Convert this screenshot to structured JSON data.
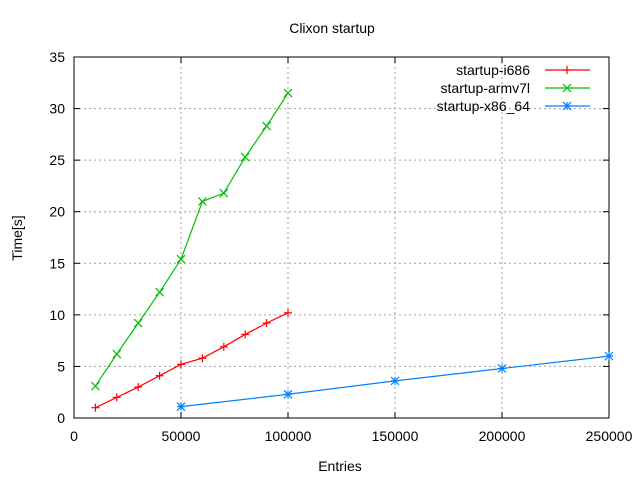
{
  "chart_data": {
    "type": "line",
    "title": "Clixon startup",
    "xlabel": "Entries",
    "ylabel": "Time[s]",
    "xlim": [
      0,
      250000
    ],
    "ylim": [
      0,
      35
    ],
    "xticks": [
      0,
      50000,
      100000,
      150000,
      200000,
      250000
    ],
    "yticks": [
      0,
      5,
      10,
      15,
      20,
      25,
      30,
      35
    ],
    "grid": true,
    "legend_position": "top-right",
    "series": [
      {
        "name": "startup-i686",
        "color": "#ff0000",
        "marker": "plus",
        "x": [
          10000,
          20000,
          30000,
          40000,
          50000,
          60000,
          70000,
          80000,
          90000,
          100000
        ],
        "y": [
          1.0,
          2.0,
          3.0,
          4.1,
          5.2,
          5.8,
          6.9,
          8.1,
          9.2,
          10.2
        ]
      },
      {
        "name": "startup-armv7l",
        "color": "#00c000",
        "marker": "cross",
        "x": [
          10000,
          20000,
          30000,
          40000,
          50000,
          60000,
          70000,
          80000,
          90000,
          100000
        ],
        "y": [
          3.1,
          6.2,
          9.2,
          12.2,
          15.4,
          21.0,
          21.8,
          25.3,
          28.3,
          31.5
        ]
      },
      {
        "name": "startup-x86_64",
        "color": "#0080ff",
        "marker": "star",
        "x": [
          50000,
          100000,
          150000,
          200000,
          250000
        ],
        "y": [
          1.1,
          2.3,
          3.6,
          4.8,
          6.0
        ]
      }
    ]
  }
}
